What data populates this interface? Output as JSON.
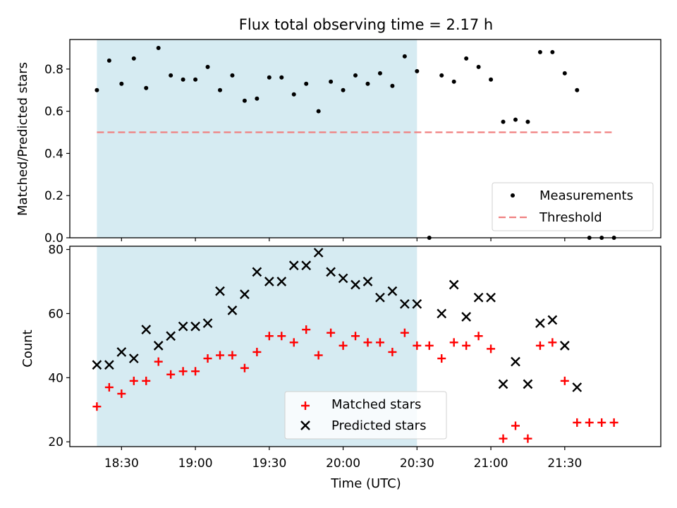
{
  "title": "Flux total observing time = 2.17 h",
  "chart_data": [
    {
      "type": "scatter",
      "ylabel": "Matched/Predicted stars",
      "ylim": [
        0,
        0.94
      ],
      "yticks": [
        0.0,
        0.2,
        0.4,
        0.6,
        0.8
      ],
      "ytick_labels": [
        "0.0",
        "0.2",
        "0.4",
        "0.6",
        "0.8"
      ],
      "xlim": [
        "18:09",
        "22:09"
      ],
      "xticks": [
        "18:30",
        "19:00",
        "19:30",
        "20:00",
        "20:30",
        "21:00",
        "21:30"
      ],
      "shaded_span": [
        "18:20",
        "20:30"
      ],
      "series": [
        {
          "name": "Measurements",
          "marker": "dot",
          "color": "#000000",
          "x": [
            "18:20",
            "18:25",
            "18:30",
            "18:35",
            "18:40",
            "18:45",
            "18:50",
            "18:55",
            "19:00",
            "19:05",
            "19:10",
            "19:15",
            "19:20",
            "19:25",
            "19:30",
            "19:35",
            "19:40",
            "19:45",
            "19:50",
            "19:55",
            "20:00",
            "20:05",
            "20:10",
            "20:15",
            "20:20",
            "20:25",
            "20:30",
            "20:35",
            "20:40",
            "20:45",
            "20:50",
            "20:55",
            "21:00",
            "21:05",
            "21:10",
            "21:15",
            "21:20",
            "21:25",
            "21:30",
            "21:35",
            "21:40",
            "21:45",
            "21:50"
          ],
          "y": [
            0.7,
            0.84,
            0.73,
            0.85,
            0.71,
            0.9,
            0.77,
            0.75,
            0.75,
            0.81,
            0.7,
            0.77,
            0.65,
            0.66,
            0.76,
            0.76,
            0.68,
            0.73,
            0.6,
            0.74,
            0.7,
            0.77,
            0.73,
            0.78,
            0.72,
            0.86,
            0.79,
            0.0,
            0.77,
            0.74,
            0.85,
            0.81,
            0.75,
            0.55,
            0.56,
            0.55,
            0.88,
            0.88,
            0.78,
            0.7,
            0.0,
            0.0,
            0.0
          ]
        },
        {
          "name": "Threshold",
          "style": "dashed",
          "color": "#f08080",
          "x": [
            "18:20",
            "21:50"
          ],
          "y": [
            0.5,
            0.5
          ]
        }
      ],
      "legend": "bottom-right"
    },
    {
      "type": "scatter",
      "ylabel": "Count",
      "xlabel": "Time (UTC)",
      "ylim": [
        18.5,
        81
      ],
      "yticks": [
        20,
        40,
        60,
        80
      ],
      "ytick_labels": [
        "20",
        "40",
        "60",
        "80"
      ],
      "xlim": [
        "18:09",
        "22:09"
      ],
      "xticks": [
        "18:30",
        "19:00",
        "19:30",
        "20:00",
        "20:30",
        "21:00",
        "21:30"
      ],
      "xtick_labels": [
        "18:30",
        "19:00",
        "19:30",
        "20:00",
        "20:30",
        "21:00",
        "21:30"
      ],
      "shaded_span": [
        "18:20",
        "20:30"
      ],
      "series": [
        {
          "name": "Matched stars",
          "marker": "plus",
          "color": "#ff0000",
          "x": [
            "18:20",
            "18:25",
            "18:30",
            "18:35",
            "18:40",
            "18:45",
            "18:50",
            "18:55",
            "19:00",
            "19:05",
            "19:10",
            "19:15",
            "19:20",
            "19:25",
            "19:30",
            "19:35",
            "19:40",
            "19:45",
            "19:50",
            "19:55",
            "20:00",
            "20:05",
            "20:10",
            "20:15",
            "20:20",
            "20:25",
            "20:30",
            "20:35",
            "20:40",
            "20:45",
            "20:50",
            "20:55",
            "21:00",
            "21:05",
            "21:10",
            "21:15",
            "21:20",
            "21:25",
            "21:30",
            "21:35",
            "21:40",
            "21:45",
            "21:50"
          ],
          "y": [
            31,
            37,
            35,
            39,
            39,
            45,
            41,
            42,
            42,
            46,
            47,
            47,
            43,
            48,
            53,
            53,
            51,
            55,
            47,
            54,
            50,
            53,
            51,
            51,
            48,
            54,
            50,
            50,
            46,
            51,
            50,
            53,
            49,
            21,
            25,
            21,
            50,
            51,
            39,
            26,
            26,
            26,
            26
          ]
        },
        {
          "name": "Predicted stars",
          "marker": "x",
          "color": "#000000",
          "x": [
            "18:20",
            "18:25",
            "18:30",
            "18:35",
            "18:40",
            "18:45",
            "18:50",
            "18:55",
            "19:00",
            "19:05",
            "19:10",
            "19:15",
            "19:20",
            "19:25",
            "19:30",
            "19:35",
            "19:40",
            "19:45",
            "19:50",
            "19:55",
            "20:00",
            "20:05",
            "20:10",
            "20:15",
            "20:20",
            "20:25",
            "20:30",
            "20:40",
            "20:45",
            "20:50",
            "20:55",
            "21:00",
            "21:05",
            "21:10",
            "21:15",
            "21:20",
            "21:25",
            "21:30",
            "21:35"
          ],
          "y": [
            44,
            44,
            48,
            46,
            55,
            50,
            53,
            56,
            56,
            57,
            67,
            61,
            66,
            73,
            70,
            70,
            75,
            75,
            79,
            73,
            71,
            69,
            70,
            65,
            67,
            63,
            63,
            60,
            69,
            59,
            65,
            65,
            38,
            45,
            38,
            57,
            58,
            50,
            37
          ]
        }
      ],
      "legend": "bottom-center"
    }
  ]
}
